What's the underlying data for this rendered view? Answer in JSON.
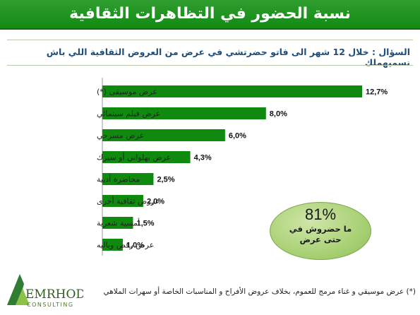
{
  "title": "نسبة الحضور في التظاهرات الثقافية",
  "question": "السؤال : خلال 12 شهر الى فاتو حضرتشي في عرض من العروض الثقافية اللي باش نسميهملك",
  "colors": {
    "header": "#138a13",
    "bar": "#0f8a0f",
    "question": "#1f4e79",
    "badge": "#a6cf72"
  },
  "chart_data": {
    "type": "bar",
    "orientation": "horizontal",
    "categories": [
      "عرض موسيقى (*)",
      "عرض فيلم سينمائي",
      "عرض مسرحي",
      "عرض بهلواني أو سيرك",
      "محاضرة أدبية",
      "عروض ثقافية أخرى",
      "أمسية شعرية",
      "عرض رقص وباليه"
    ],
    "values": [
      12.7,
      8.0,
      6.0,
      4.3,
      2.5,
      2.0,
      1.5,
      1.0
    ],
    "labels": [
      "12,7%",
      "8,0%",
      "6,0%",
      "4,3%",
      "2,5%",
      "2,0%",
      "1,5%",
      "1,0%"
    ],
    "xlim": [
      0,
      13.5
    ],
    "grid": false,
    "legend": "none"
  },
  "badge": {
    "value": "81%",
    "text": "ما حضروش في حتى عرض"
  },
  "logo": {
    "name": "EMRHOD",
    "sub": "CONSULTING"
  },
  "footnote": "(*) عرض موسيقي و غناء مرمج للعموم، بخلاف عروض الأفراح و المناسبات الخاصة أو سهرات الملاهي"
}
